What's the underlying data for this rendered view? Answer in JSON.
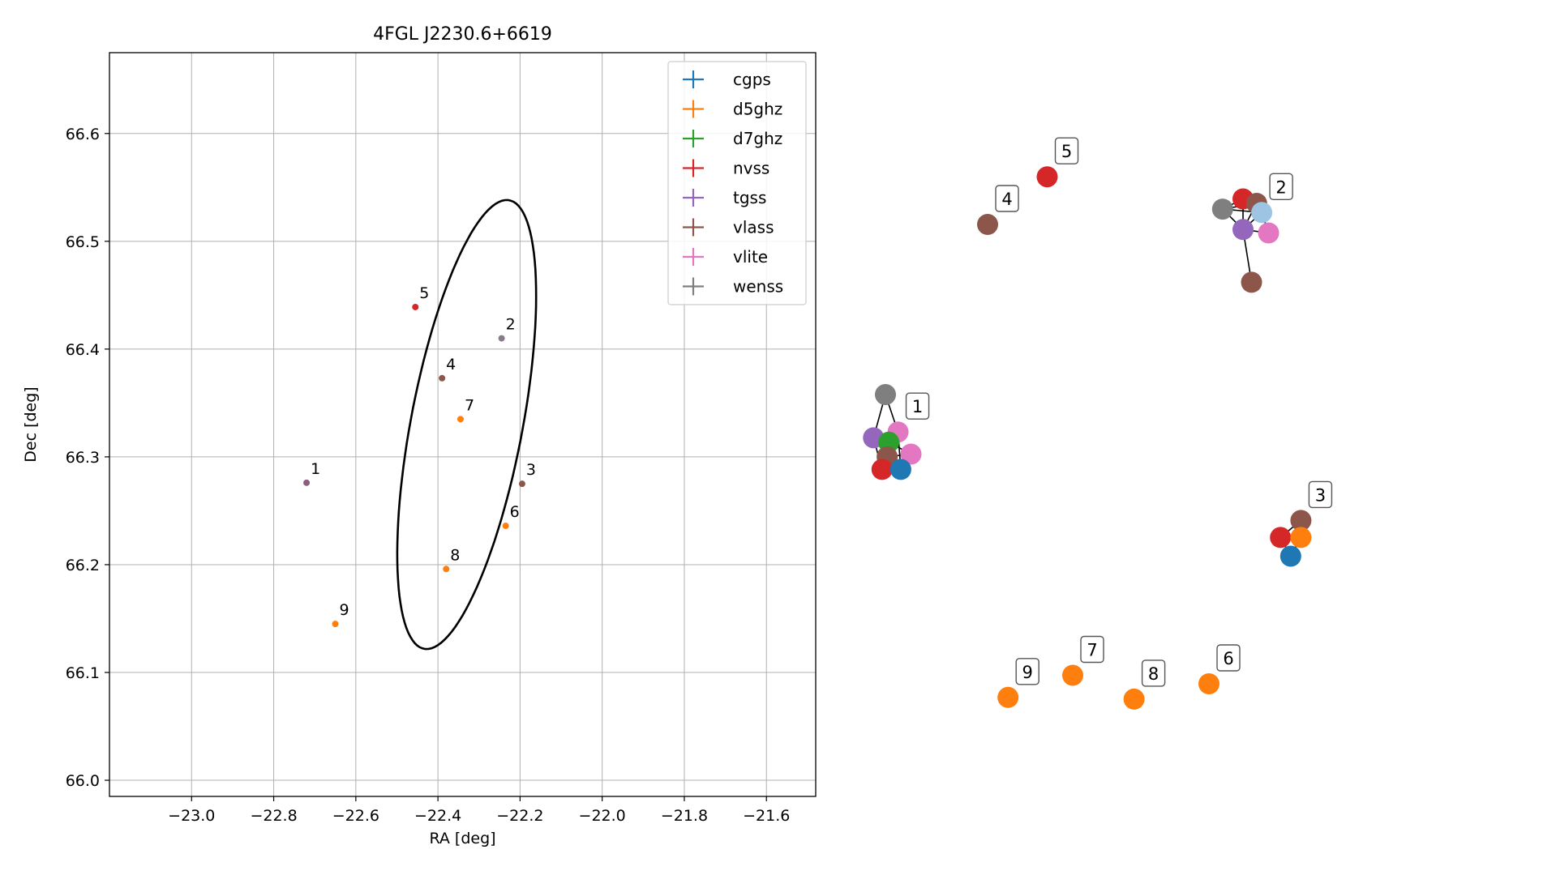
{
  "chart_data": [
    {
      "type": "scatter",
      "title": "4FGL J2230.6+6619",
      "xlabel": "RA [deg]",
      "ylabel": "Dec [deg]",
      "xlim": [
        -23.2,
        -21.48
      ],
      "ylim": [
        65.985,
        66.675
      ],
      "xticks": [
        -23.0,
        -22.8,
        -22.6,
        -22.4,
        -22.2,
        -22.0,
        -21.8,
        -21.6
      ],
      "xtick_labels": [
        "−23.0",
        "−22.8",
        "−22.6",
        "−22.4",
        "−22.2",
        "−22.0",
        "−21.8",
        "−21.6"
      ],
      "yticks": [
        66.0,
        66.1,
        66.2,
        66.3,
        66.4,
        66.5,
        66.6
      ],
      "ytick_labels": [
        "66.0",
        "66.1",
        "66.2",
        "66.3",
        "66.4",
        "66.5",
        "66.6"
      ],
      "grid": true,
      "legend": "top-right",
      "ellipse": {
        "center": [
          -22.33,
          66.33
        ],
        "semi_major_deg": 0.24,
        "semi_minor_deg": 0.12,
        "angle_deg": 55
      },
      "series": [
        {
          "name": "cgps",
          "color": "#1f77b4"
        },
        {
          "name": "d5ghz",
          "color": "#ff7f0e"
        },
        {
          "name": "d7ghz",
          "color": "#2ca02c"
        },
        {
          "name": "nvss",
          "color": "#d62728"
        },
        {
          "name": "tgss",
          "color": "#9467bd"
        },
        {
          "name": "vlass",
          "color": "#8c564b"
        },
        {
          "name": "vlite",
          "color": "#e377c2"
        },
        {
          "name": "wenss",
          "color": "#7f7f7f"
        }
      ],
      "points": [
        {
          "label": "1",
          "x": -22.72,
          "y": 66.276,
          "color": "#8c5f80"
        },
        {
          "label": "2",
          "x": -22.245,
          "y": 66.41,
          "color": "#8a7a8a"
        },
        {
          "label": "3",
          "x": -22.195,
          "y": 66.275,
          "color": "#8c564b"
        },
        {
          "label": "4",
          "x": -22.39,
          "y": 66.373,
          "color": "#8c564b"
        },
        {
          "label": "5",
          "x": -22.455,
          "y": 66.439,
          "color": "#d62728"
        },
        {
          "label": "6",
          "x": -22.235,
          "y": 66.236,
          "color": "#ff7f0e"
        },
        {
          "label": "7",
          "x": -22.345,
          "y": 66.335,
          "color": "#ff7f0e"
        },
        {
          "label": "8",
          "x": -22.38,
          "y": 66.196,
          "color": "#ff7f0e"
        },
        {
          "label": "9",
          "x": -22.65,
          "y": 66.145,
          "color": "#ff7f0e"
        }
      ]
    },
    {
      "type": "network",
      "nodes": [
        {
          "id": "g1-wenss",
          "color": "#7f7f7f",
          "x": 0.0,
          "y": 0.0
        },
        {
          "id": "g1-tgss",
          "color": "#9467bd",
          "x": -0.35,
          "y": 1.27
        },
        {
          "id": "g1-vlite",
          "color": "#e377c2",
          "x": 0.37,
          "y": 1.1
        },
        {
          "id": "g1-d7ghz",
          "color": "#2ca02c",
          "x": 0.1,
          "y": 1.4
        },
        {
          "id": "g1-vlite2",
          "color": "#e377c2",
          "x": 0.75,
          "y": 1.75
        },
        {
          "id": "g1-vlass",
          "color": "#8c564b",
          "x": 0.05,
          "y": 1.83
        },
        {
          "id": "g1-nvss",
          "color": "#d62728",
          "x": -0.1,
          "y": 2.2
        },
        {
          "id": "g1-cgps",
          "color": "#1f77b4",
          "x": 0.45,
          "y": 2.2
        },
        {
          "id": "g2-nvss",
          "color": "#d62728",
          "x": 10.5,
          "y": -5.75
        },
        {
          "id": "g2-vlass",
          "color": "#8c564b",
          "x": 10.9,
          "y": -5.62
        },
        {
          "id": "g2-wenss",
          "color": "#7f7f7f",
          "x": 9.9,
          "y": -5.45
        },
        {
          "id": "g2-cgps",
          "color": "#9ec4e4",
          "x": 11.05,
          "y": -5.35
        },
        {
          "id": "g2-tgss",
          "color": "#9467bd",
          "x": 10.5,
          "y": -4.85
        },
        {
          "id": "g2-vlite",
          "color": "#e377c2",
          "x": 11.25,
          "y": -4.75
        },
        {
          "id": "g2-vlass2",
          "color": "#8c564b",
          "x": 10.75,
          "y": -3.3
        },
        {
          "id": "g3-vlass",
          "color": "#8c564b",
          "x": 12.2,
          "y": 3.7
        },
        {
          "id": "g3-nvss",
          "color": "#d62728",
          "x": 11.6,
          "y": 4.2
        },
        {
          "id": "g3-d5ghz",
          "color": "#ff7f0e",
          "x": 12.2,
          "y": 4.2
        },
        {
          "id": "g3-cgps",
          "color": "#1f77b4",
          "x": 11.9,
          "y": 4.75
        },
        {
          "id": "n4",
          "color": "#8c564b",
          "x": 3.0,
          "y": -5.0
        },
        {
          "id": "n5",
          "color": "#d62728",
          "x": 4.75,
          "y": -6.4
        },
        {
          "id": "n6",
          "color": "#ff7f0e",
          "x": 9.5,
          "y": 8.5
        },
        {
          "id": "n7",
          "color": "#ff7f0e",
          "x": 5.5,
          "y": 8.25
        },
        {
          "id": "n8",
          "color": "#ff7f0e",
          "x": 7.3,
          "y": 8.95
        },
        {
          "id": "n9",
          "color": "#ff7f0e",
          "x": 3.6,
          "y": 8.9
        }
      ],
      "edges": [
        [
          "g1-wenss",
          "g1-tgss"
        ],
        [
          "g1-wenss",
          "g1-vlite"
        ],
        [
          "g1-tgss",
          "g1-vlite"
        ],
        [
          "g1-tgss",
          "g1-d7ghz"
        ],
        [
          "g1-tgss",
          "g1-vlass"
        ],
        [
          "g1-tgss",
          "g1-nvss"
        ],
        [
          "g1-vlite",
          "g1-d7ghz"
        ],
        [
          "g1-vlite",
          "g1-cgps"
        ],
        [
          "g1-d7ghz",
          "g1-vlite2"
        ],
        [
          "g1-d7ghz",
          "g1-vlass"
        ],
        [
          "g1-d7ghz",
          "g1-nvss"
        ],
        [
          "g1-d7ghz",
          "g1-cgps"
        ],
        [
          "g1-vlite2",
          "g1-cgps"
        ],
        [
          "g1-vlite2",
          "g1-vlass"
        ],
        [
          "g1-vlass",
          "g1-nvss"
        ],
        [
          "g1-vlass",
          "g1-cgps"
        ],
        [
          "g1-nvss",
          "g1-cgps"
        ],
        [
          "g2-nvss",
          "g2-vlass"
        ],
        [
          "g2-nvss",
          "g2-wenss"
        ],
        [
          "g2-nvss",
          "g2-cgps"
        ],
        [
          "g2-nvss",
          "g2-tgss"
        ],
        [
          "g2-vlass",
          "g2-wenss"
        ],
        [
          "g2-vlass",
          "g2-cgps"
        ],
        [
          "g2-vlass",
          "g2-tgss"
        ],
        [
          "g2-wenss",
          "g2-cgps"
        ],
        [
          "g2-wenss",
          "g2-tgss"
        ],
        [
          "g2-cgps",
          "g2-tgss"
        ],
        [
          "g2-cgps",
          "g2-vlite"
        ],
        [
          "g2-tgss",
          "g2-vlite"
        ],
        [
          "g2-tgss",
          "g2-vlass2"
        ],
        [
          "g3-vlass",
          "g3-nvss"
        ],
        [
          "g3-vlass",
          "g3-d5ghz"
        ],
        [
          "g3-nvss",
          "g3-d5ghz"
        ],
        [
          "g3-nvss",
          "g3-cgps"
        ],
        [
          "g3-d5ghz",
          "g3-cgps"
        ]
      ],
      "labels": [
        {
          "text": "1",
          "node": "g1-vlite"
        },
        {
          "text": "2",
          "node": "g2-cgps"
        },
        {
          "text": "3",
          "node": "g3-d5ghz",
          "dy": -0.5
        },
        {
          "text": "4",
          "node": "n4"
        },
        {
          "text": "5",
          "node": "n5"
        },
        {
          "text": "6",
          "node": "n6"
        },
        {
          "text": "7",
          "node": "n7"
        },
        {
          "text": "8",
          "node": "n8"
        },
        {
          "text": "9",
          "node": "n9"
        }
      ]
    }
  ]
}
